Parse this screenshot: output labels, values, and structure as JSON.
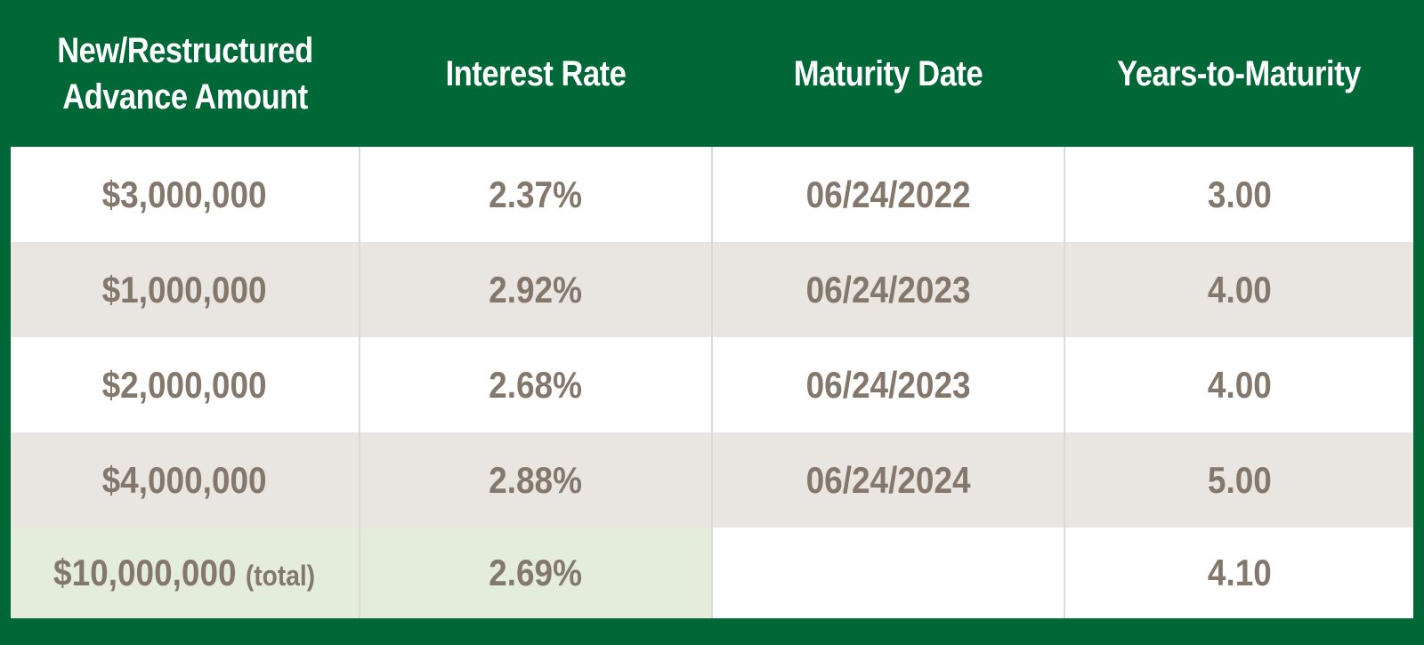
{
  "colors": {
    "header_green": "#006837",
    "text_taupe": "#84776c",
    "row_alt": "#e9e5e1",
    "total_highlight": "#e4ecdb"
  },
  "chart_data": {
    "type": "table",
    "columns": [
      {
        "line1": "New/Restructured",
        "line2": "Advance Amount"
      },
      {
        "line1": "Interest Rate",
        "line2": ""
      },
      {
        "line1": "Maturity Date",
        "line2": ""
      },
      {
        "line1": "Years-to-Maturity",
        "line2": ""
      }
    ],
    "rows": [
      {
        "amount": "$3,000,000",
        "rate": "2.37%",
        "maturity": "06/24/2022",
        "years": "3.00"
      },
      {
        "amount": "$1,000,000",
        "rate": "2.92%",
        "maturity": "06/24/2023",
        "years": "4.00"
      },
      {
        "amount": "$2,000,000",
        "rate": "2.68%",
        "maturity": "06/24/2023",
        "years": "4.00"
      },
      {
        "amount": "$4,000,000",
        "rate": "2.88%",
        "maturity": "06/24/2024",
        "years": "5.00"
      }
    ],
    "total": {
      "amount": "$10,000,000",
      "note": "(total)",
      "rate": "2.69%",
      "maturity": "",
      "years": "4.10"
    }
  }
}
